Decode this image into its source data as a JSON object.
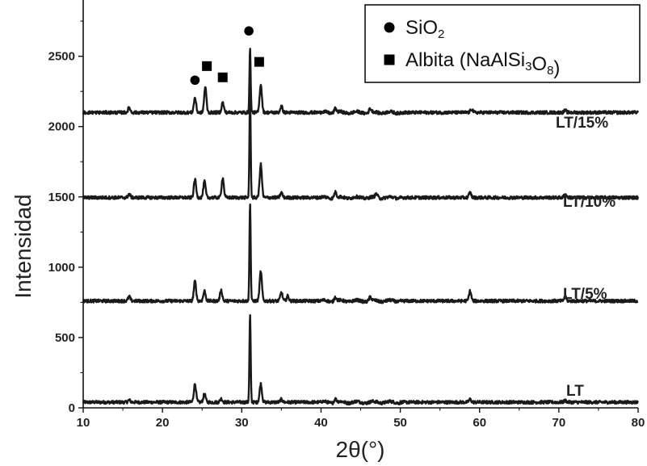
{
  "chart_data": {
    "type": "line",
    "xlabel": "2θ(°)",
    "ylabel": "Intensidad",
    "xlim": [
      10,
      80
    ],
    "ylim": [
      0,
      2900
    ],
    "x_ticks": [
      "10",
      "20",
      "30",
      "40",
      "50",
      "60",
      "70",
      "80"
    ],
    "y_ticks": [
      "0",
      "500",
      "1000",
      "1500",
      "2000",
      "2500"
    ],
    "grid": false,
    "series": [
      {
        "name": "LT",
        "baseline": 40,
        "peaks": [
          [
            15.8,
            15
          ],
          [
            24.1,
            130
          ],
          [
            25.3,
            60
          ],
          [
            27.4,
            25
          ],
          [
            31.05,
            620
          ],
          [
            32.4,
            130
          ],
          [
            35.0,
            20
          ],
          [
            41.8,
            25
          ],
          [
            58.8,
            20
          ],
          [
            70.8,
            12
          ]
        ]
      },
      {
        "name": "LT/5%",
        "baseline": 760,
        "peaks": [
          [
            15.8,
            30
          ],
          [
            24.1,
            140
          ],
          [
            25.3,
            70
          ],
          [
            27.4,
            75
          ],
          [
            31.05,
            700
          ],
          [
            32.4,
            210
          ],
          [
            35.0,
            60
          ],
          [
            35.8,
            35
          ],
          [
            41.8,
            30
          ],
          [
            46.2,
            25
          ],
          [
            58.8,
            70
          ],
          [
            70.8,
            28
          ]
        ]
      },
      {
        "name": "LT/10%",
        "baseline": 1495,
        "peaks": [
          [
            15.8,
            25
          ],
          [
            24.1,
            130
          ],
          [
            25.3,
            115
          ],
          [
            27.6,
            140
          ],
          [
            31.05,
            750
          ],
          [
            32.4,
            235
          ],
          [
            35.0,
            35
          ],
          [
            41.8,
            40
          ],
          [
            47.0,
            25
          ],
          [
            58.8,
            35
          ],
          [
            70.8,
            25
          ]
        ]
      },
      {
        "name": "LT/15%",
        "baseline": 2100,
        "peaks": [
          [
            15.8,
            35
          ],
          [
            24.1,
            105
          ],
          [
            25.4,
            180
          ],
          [
            27.6,
            70
          ],
          [
            31.05,
            450
          ],
          [
            32.4,
            200
          ],
          [
            35.0,
            45
          ],
          [
            41.8,
            30
          ],
          [
            46.2,
            25
          ],
          [
            59.0,
            25
          ],
          [
            70.8,
            15
          ]
        ]
      }
    ],
    "markers": [
      {
        "shape": "circle",
        "x": 24.1,
        "y": 2330
      },
      {
        "shape": "square",
        "x": 25.6,
        "y": 2430
      },
      {
        "shape": "square",
        "x": 27.6,
        "y": 2350
      },
      {
        "shape": "circle",
        "x": 30.9,
        "y": 2680
      },
      {
        "shape": "square",
        "x": 32.2,
        "y": 2460
      }
    ],
    "legend": {
      "placement": "top-right",
      "entries": [
        {
          "shape": "circle",
          "parts": [
            {
              "t": "SiO"
            },
            {
              "t": "2",
              "sub": true
            }
          ]
        },
        {
          "shape": "square",
          "parts": [
            {
              "t": "Albita (NaAlSi"
            },
            {
              "t": "3",
              "sub": true
            },
            {
              "t": "O"
            },
            {
              "t": "8",
              "sub": true
            },
            {
              "t": ")"
            }
          ]
        }
      ]
    }
  }
}
